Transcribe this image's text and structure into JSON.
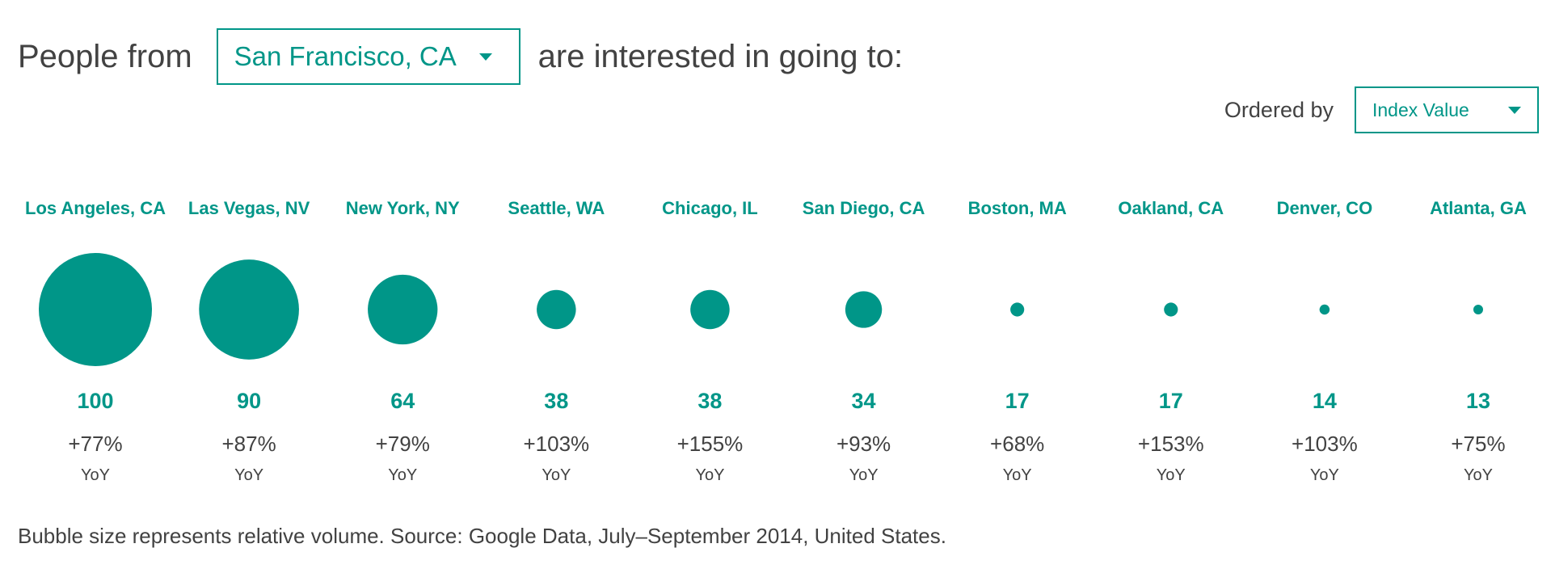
{
  "header": {
    "prefix": "People from",
    "origin_selected": "San Francisco, CA",
    "suffix": "are interested in going to:"
  },
  "order": {
    "label": "Ordered by",
    "selected": "Index Value"
  },
  "footnote": "Bubble size represents relative volume. Source: Google Data, July–September 2014, United States.",
  "colors": {
    "accent": "#009688",
    "text": "#424242"
  },
  "chart_data": {
    "type": "bubble",
    "categories": [
      "Los Angeles, CA",
      "Las Vegas, NV",
      "New York, NY",
      "Seattle, WA",
      "Chicago, IL",
      "San Diego, CA",
      "Boston, MA",
      "Oakland, CA",
      "Denver, CO",
      "Atlanta, GA"
    ],
    "index_values": [
      100,
      90,
      64,
      38,
      38,
      34,
      17,
      17,
      14,
      13
    ],
    "yoy_changes": [
      "+77%",
      "+87%",
      "+79%",
      "+103%",
      "+155%",
      "+93%",
      "+68%",
      "+153%",
      "+103%",
      "+75%"
    ],
    "relative_volume": [
      1.0,
      0.78,
      0.38,
      0.12,
      0.12,
      0.105,
      0.015,
      0.015,
      0.008,
      0.006
    ],
    "yoy_suffix": "YoY",
    "bubble_color": "#009688",
    "bubble_size_meaning": "relative volume"
  }
}
